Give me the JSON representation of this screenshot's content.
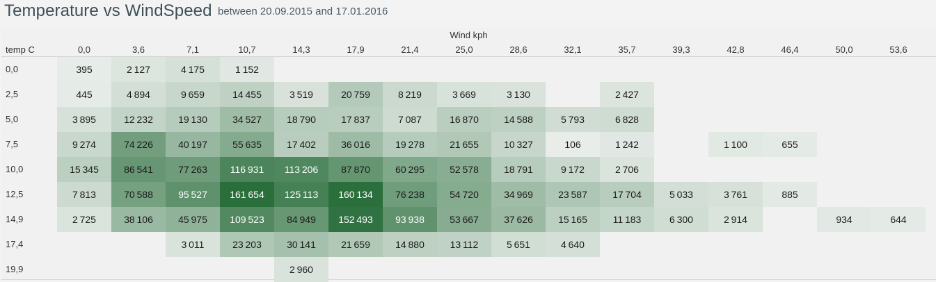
{
  "header": {
    "title": "Temperature vs WindSpeed",
    "subtitle": "between 20.09.2015 and 17.01.2016"
  },
  "chart_data": {
    "type": "heatmap",
    "title": "Temperature vs WindSpeed",
    "subtitle": "between 20.09.2015 and 17.01.2016",
    "xlabel": "Wind kph",
    "ylabel": "temp C",
    "x": [
      "0,0",
      "3,6",
      "7,1",
      "10,7",
      "14,3",
      "17,9",
      "21,4",
      "25,0",
      "28,6",
      "32,1",
      "35,7",
      "39,3",
      "42,8",
      "46,4",
      "50,0",
      "53,6"
    ],
    "y": [
      "0,0",
      "2,5",
      "5,0",
      "7,5",
      "10,0",
      "12,5",
      "14,9",
      "17,4",
      "19,9"
    ],
    "values": [
      [
        395,
        2127,
        4175,
        1152,
        null,
        null,
        null,
        null,
        null,
        null,
        null,
        null,
        null,
        null,
        null,
        null
      ],
      [
        445,
        4894,
        9659,
        14455,
        3519,
        20759,
        8219,
        3669,
        3130,
        null,
        2427,
        null,
        null,
        null,
        null,
        null
      ],
      [
        3895,
        12232,
        19130,
        34527,
        18790,
        17837,
        7087,
        16870,
        14588,
        5793,
        6828,
        null,
        null,
        null,
        null,
        null
      ],
      [
        9274,
        74226,
        40197,
        55635,
        17402,
        36016,
        19278,
        21655,
        10327,
        106,
        1242,
        null,
        1100,
        655,
        null,
        null
      ],
      [
        15345,
        86541,
        77263,
        116931,
        113206,
        87870,
        60295,
        52578,
        18791,
        9172,
        2706,
        null,
        null,
        null,
        null,
        null
      ],
      [
        7813,
        70588,
        95527,
        161654,
        125113,
        160134,
        76238,
        54720,
        34969,
        23587,
        17704,
        5033,
        3761,
        885,
        null,
        null
      ],
      [
        2725,
        38106,
        45975,
        109523,
        84949,
        152493,
        93938,
        53667,
        37626,
        15165,
        11183,
        6300,
        2914,
        null,
        934,
        644
      ],
      [
        null,
        null,
        3011,
        23203,
        30141,
        21659,
        14880,
        13112,
        5651,
        4640,
        null,
        null,
        null,
        null,
        null,
        null
      ],
      [
        null,
        null,
        null,
        null,
        2960,
        null,
        null,
        null,
        null,
        null,
        null,
        null,
        null,
        null,
        null,
        null
      ]
    ],
    "color_scale": {
      "low": "#ebefec",
      "high": "#2a6e3c"
    },
    "legend": "none"
  }
}
